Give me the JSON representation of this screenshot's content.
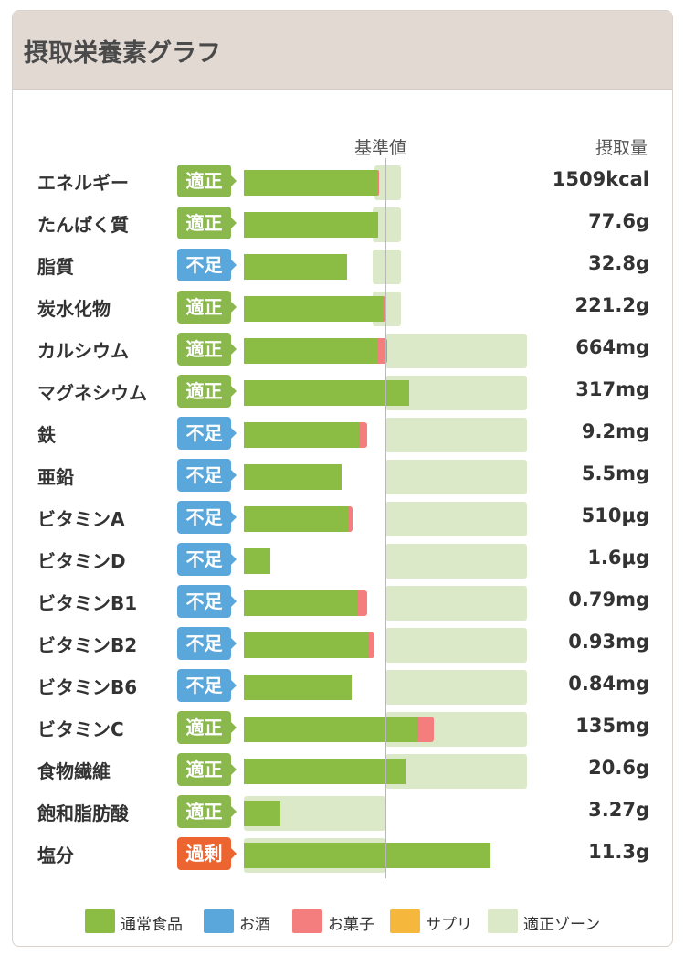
{
  "title": "摂取栄養素グラフ",
  "columns": {
    "reference": "基準値",
    "amount": "摂取量"
  },
  "colors": {
    "food": "#8bbd45",
    "alcohol": "#5aa7dc",
    "snack": "#f47d7d",
    "supplement": "#f5b83d",
    "zone": "#dce9c9",
    "status_ok": "#8ab84d",
    "status_low": "#5aa7dc",
    "status_over": "#ec6530"
  },
  "legend": [
    {
      "label": "通常食品",
      "color": "#8bbd45"
    },
    {
      "label": "お酒",
      "color": "#5aa7dc"
    },
    {
      "label": "お菓子",
      "color": "#f47d7d"
    },
    {
      "label": "サプリ",
      "color": "#f5b83d"
    },
    {
      "label": "適正ゾーン",
      "color": "#dce9c9"
    }
  ],
  "chart_data": {
    "type": "bar",
    "orientation": "horizontal",
    "reference_percent": 100,
    "xlim_percent": [
      0,
      175
    ],
    "series": [
      "通常食品",
      "お酒",
      "お菓子",
      "サプリ"
    ],
    "nutrients": [
      {
        "name": "エネルギー",
        "status": "適正",
        "status_kind": "ok",
        "amount": "1509kcal",
        "food": 94,
        "snack": 1,
        "zone": [
          92,
          111
        ]
      },
      {
        "name": "たんぱく質",
        "status": "適正",
        "status_kind": "ok",
        "amount": "77.6g",
        "food": 95,
        "snack": 0,
        "zone": [
          91,
          111
        ]
      },
      {
        "name": "脂質",
        "status": "不足",
        "status_kind": "low",
        "amount": "32.8g",
        "food": 73,
        "snack": 0,
        "zone": [
          91,
          111
        ]
      },
      {
        "name": "炭水化物",
        "status": "適正",
        "status_kind": "ok",
        "amount": "221.2g",
        "food": 99,
        "snack": 1,
        "zone": [
          91,
          111
        ]
      },
      {
        "name": "カルシウム",
        "status": "適正",
        "status_kind": "ok",
        "amount": "664mg",
        "food": 95,
        "snack": 6,
        "zone": [
          100,
          200
        ]
      },
      {
        "name": "マグネシウム",
        "status": "適正",
        "status_kind": "ok",
        "amount": "317mg",
        "food": 117,
        "snack": 0,
        "zone": [
          100,
          200
        ]
      },
      {
        "name": "鉄",
        "status": "不足",
        "status_kind": "low",
        "amount": "9.2mg",
        "food": 82,
        "snack": 5,
        "zone": [
          100,
          200
        ]
      },
      {
        "name": "亜鉛",
        "status": "不足",
        "status_kind": "low",
        "amount": "5.5mg",
        "food": 69,
        "snack": 0,
        "zone": [
          100,
          200
        ]
      },
      {
        "name": "ビタミンA",
        "status": "不足",
        "status_kind": "low",
        "amount": "510μg",
        "food": 74,
        "snack": 3,
        "zone": [
          100,
          200
        ]
      },
      {
        "name": "ビタミンD",
        "status": "不足",
        "status_kind": "low",
        "amount": "1.6μg",
        "food": 19,
        "snack": 0,
        "zone": [
          100,
          200
        ]
      },
      {
        "name": "ビタミンB1",
        "status": "不足",
        "status_kind": "low",
        "amount": "0.79mg",
        "food": 80,
        "snack": 7,
        "zone": [
          100,
          200
        ]
      },
      {
        "name": "ビタミンB2",
        "status": "不足",
        "status_kind": "low",
        "amount": "0.93mg",
        "food": 88,
        "snack": 4,
        "zone": [
          100,
          200
        ]
      },
      {
        "name": "ビタミンB6",
        "status": "不足",
        "status_kind": "low",
        "amount": "0.84mg",
        "food": 76,
        "snack": 0,
        "zone": [
          100,
          200
        ]
      },
      {
        "name": "ビタミンC",
        "status": "適正",
        "status_kind": "ok",
        "amount": "135mg",
        "food": 123,
        "snack": 11,
        "zone": [
          100,
          200
        ]
      },
      {
        "name": "食物繊維",
        "status": "適正",
        "status_kind": "ok",
        "amount": "20.6g",
        "food": 114,
        "snack": 0,
        "zone": [
          100,
          200
        ]
      },
      {
        "name": "飽和脂肪酸",
        "status": "適正",
        "status_kind": "ok",
        "amount": "3.27g",
        "food": 26,
        "snack": 0,
        "zone": [
          0,
          100
        ]
      },
      {
        "name": "塩分",
        "status": "過剰",
        "status_kind": "over",
        "amount": "11.3g",
        "food": 174,
        "snack": 0,
        "zone": [
          0,
          100
        ]
      }
    ]
  }
}
